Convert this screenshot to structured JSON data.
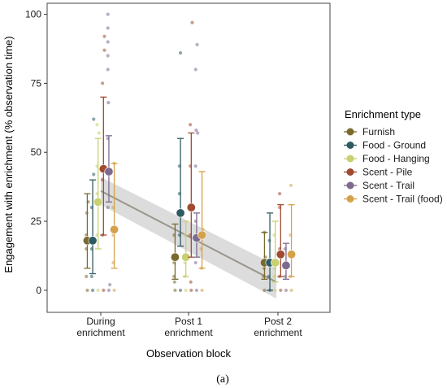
{
  "chart_data": {
    "type": "scatter",
    "xlabel": "Observation block",
    "ylabel": "Engagement with enrichment (% observation time)",
    "ylim": [
      -8,
      104
    ],
    "yticks": [
      0,
      25,
      50,
      75,
      100
    ],
    "categories": [
      {
        "line1": "During",
        "line2": "enrichment"
      },
      {
        "line1": "Post 1",
        "line2": "enrichment"
      },
      {
        "line1": "Post 2",
        "line2": "enrichment"
      }
    ],
    "legend_title": "Enrichment type",
    "legend_position": "right",
    "caption": "(a)",
    "series": [
      {
        "name": "Furnish",
        "color": "#7a6a2e",
        "means": [
          18,
          12,
          10
        ],
        "lower": [
          8,
          4,
          4
        ],
        "upper": [
          35,
          24,
          21
        ],
        "raw": [
          [
            0,
            5,
            15,
            20,
            28,
            32
          ],
          [
            0,
            3,
            5,
            10,
            20
          ],
          [
            0,
            5,
            8,
            12,
            21
          ]
        ]
      },
      {
        "name": "Food - Ground",
        "color": "#2e5b62",
        "means": [
          18,
          28,
          10
        ],
        "lower": [
          6,
          16,
          0
        ],
        "upper": [
          40,
          55,
          28
        ],
        "raw": [
          [
            0,
            5,
            15,
            30,
            42,
            62
          ],
          [
            0,
            20,
            35,
            45,
            86
          ],
          [
            0,
            5,
            10,
            18
          ]
        ]
      },
      {
        "name": "Food - Hanging",
        "color": "#c8d070",
        "means": [
          32,
          12,
          10
        ],
        "lower": [
          15,
          5,
          3
        ],
        "upper": [
          55,
          25,
          25
        ],
        "raw": [
          [
            0,
            20,
            35,
            45,
            57,
            60
          ],
          [
            0,
            5,
            10,
            20
          ],
          [
            0,
            5,
            8,
            20
          ]
        ]
      },
      {
        "name": "Scent - Pile",
        "color": "#a04a30",
        "means": [
          44,
          30,
          13
        ],
        "lower": [
          20,
          12,
          5
        ],
        "upper": [
          70,
          57,
          31
        ],
        "raw": [
          [
            0,
            20,
            40,
            75,
            87,
            92
          ],
          [
            0,
            3,
            20,
            45,
            60,
            97
          ],
          [
            0,
            5,
            15,
            30,
            35
          ]
        ]
      },
      {
        "name": "Scent - Trail",
        "color": "#7e6a8e",
        "means": [
          43,
          19,
          9
        ],
        "lower": [
          32,
          12,
          4
        ],
        "upper": [
          56,
          28,
          17
        ],
        "raw": [
          [
            0,
            2,
            30,
            55,
            68,
            80,
            85,
            90,
            95,
            100
          ],
          [
            0,
            10,
            25,
            45,
            57,
            58,
            80,
            89
          ],
          [
            0,
            5,
            10,
            15
          ]
        ]
      },
      {
        "name": "Scent - Trail (food)",
        "color": "#d4a24a",
        "means": [
          22,
          20,
          13
        ],
        "lower": [
          8,
          8,
          5
        ],
        "upper": [
          46,
          43,
          31
        ],
        "raw": [
          [
            0,
            10,
            20,
            30,
            46
          ],
          [
            0,
            8,
            15,
            22
          ],
          [
            0,
            5,
            20,
            38
          ]
        ]
      }
    ],
    "trend": {
      "x": [
        1,
        3
      ],
      "y": [
        36,
        3
      ],
      "ci_lower": [
        31,
        -3
      ],
      "ci_upper": [
        41,
        9
      ]
    }
  }
}
